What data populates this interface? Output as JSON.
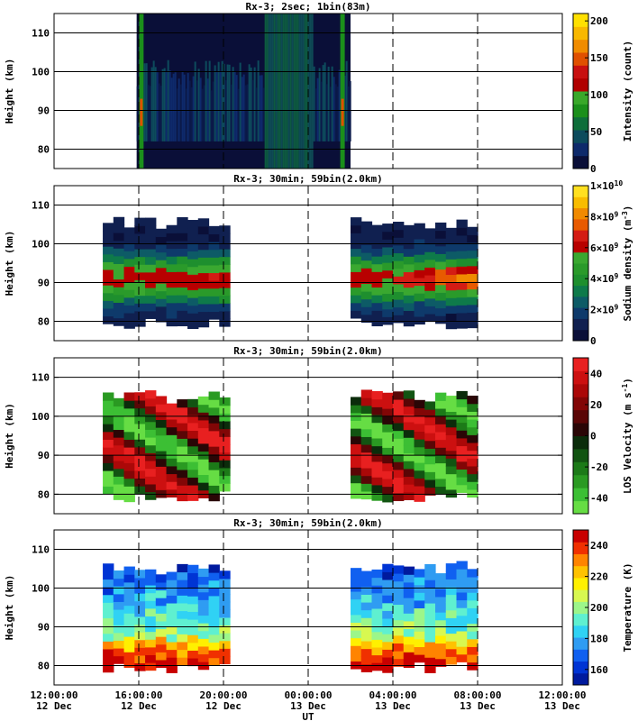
{
  "chart_data": [
    {
      "type": "heatmap",
      "title": "Rx-3;  2sec; 1bin(83m)",
      "ylabel": "Height (km)",
      "colorbar_label": "Intensity (count)",
      "yticks": [
        80,
        90,
        100,
        110
      ],
      "ylim": [
        75,
        115
      ],
      "xlim_hours_from_12dec_1200": [
        0,
        24
      ],
      "colorbar_ticks": [
        "0",
        "50",
        "100",
        "150",
        "200"
      ],
      "colorbar_range": [
        0,
        210
      ],
      "colorbar_colors": [
        "#0a0f38",
        "#0e2a6b",
        "#0d4b5c",
        "#0e6e3a",
        "#1b8f1b",
        "#3aa82a",
        "#b00000",
        "#c81010",
        "#e05000",
        "#f08c00",
        "#f8b800",
        "#ffe000"
      ],
      "data_coverage_hours": [
        [
          3.9,
          14.0
        ]
      ],
      "bright_band_hours": [
        9.9,
        12.2
      ],
      "dawn_dusk_edges_hours": [
        4.1,
        13.6
      ]
    },
    {
      "type": "heatmap",
      "title": "Rx-3; 30min; 59bin(2.0km)",
      "ylabel": "Height (km)",
      "colorbar_label": "Sodium density (m^-3)",
      "yticks": [
        80,
        90,
        100,
        110
      ],
      "ylim": [
        75,
        115
      ],
      "colorbar_ticks": [
        "0",
        "2×10^9",
        "4×10^9",
        "6×10^9",
        "8×10^9",
        "1×10^10"
      ],
      "colorbar_range": [
        0,
        10000000000.0
      ],
      "colorbar_colors": [
        "#0a0f38",
        "#102050",
        "#0e3a6b",
        "#0d5b66",
        "#0e7a4a",
        "#1e8f2e",
        "#2a9a2a",
        "#3aa830",
        "#b80000",
        "#d41c14",
        "#e85a00",
        "#f08a00",
        "#f8bc00",
        "#ffe020"
      ],
      "data_coverage_hours": [
        [
          2.3,
          8.0
        ],
        [
          14.0,
          20.0
        ]
      ],
      "peak_height_km": 90,
      "layer_range_km": [
        79,
        104
      ]
    },
    {
      "type": "heatmap",
      "title": "Rx-3; 30min; 59bin(2.0km)",
      "ylabel": "Height (km)",
      "colorbar_label": "LOS Velocity (m s^-1)",
      "yticks": [
        80,
        90,
        100,
        110
      ],
      "ylim": [
        75,
        115
      ],
      "colorbar_ticks": [
        "-40",
        "-20",
        "0",
        "20",
        "40"
      ],
      "colorbar_range": [
        -50,
        50
      ],
      "colorbar_colors": [
        "#66dd44",
        "#3cbf34",
        "#2a9a22",
        "#1c7a18",
        "#125412",
        "#0b2c0b",
        "#2a0606",
        "#5a0606",
        "#820606",
        "#ab0808",
        "#cc1010",
        "#e82020"
      ],
      "data_coverage_hours": [
        [
          2.3,
          8.0
        ],
        [
          14.0,
          20.0
        ]
      ]
    },
    {
      "type": "heatmap",
      "title": "Rx-3; 30min; 59bin(2.0km)",
      "ylabel": "Height (km)",
      "colorbar_label": "Temperature (K)",
      "yticks": [
        80,
        90,
        100,
        110
      ],
      "ylim": [
        75,
        115
      ],
      "colorbar_ticks": [
        "160",
        "180",
        "200",
        "220",
        "240"
      ],
      "colorbar_range": [
        150,
        250
      ],
      "colorbar_colors": [
        "#001a9e",
        "#0034d4",
        "#1060f0",
        "#2f9cf2",
        "#30d2f4",
        "#5ff0d0",
        "#9cf68a",
        "#d8f850",
        "#fff000",
        "#ffc200",
        "#ff8400",
        "#f03000",
        "#c80000"
      ],
      "data_coverage_hours": [
        [
          2.3,
          8.0
        ],
        [
          14.0,
          20.0
        ]
      ]
    }
  ],
  "x_axis": {
    "xlabel": "UT",
    "ticks_hours": [
      0,
      4,
      8,
      12,
      16,
      20,
      24
    ],
    "tick_times": [
      "12:00:00",
      "16:00:00",
      "20:00:00",
      "00:00:00",
      "04:00:00",
      "08:00:00",
      "12:00:00"
    ],
    "tick_dates": [
      "12 Dec",
      "12 Dec",
      "12 Dec",
      "13 Dec",
      "13 Dec",
      "13 Dec",
      "13 Dec"
    ],
    "dashed_lines_hours": [
      4,
      8,
      12,
      16,
      20
    ]
  }
}
